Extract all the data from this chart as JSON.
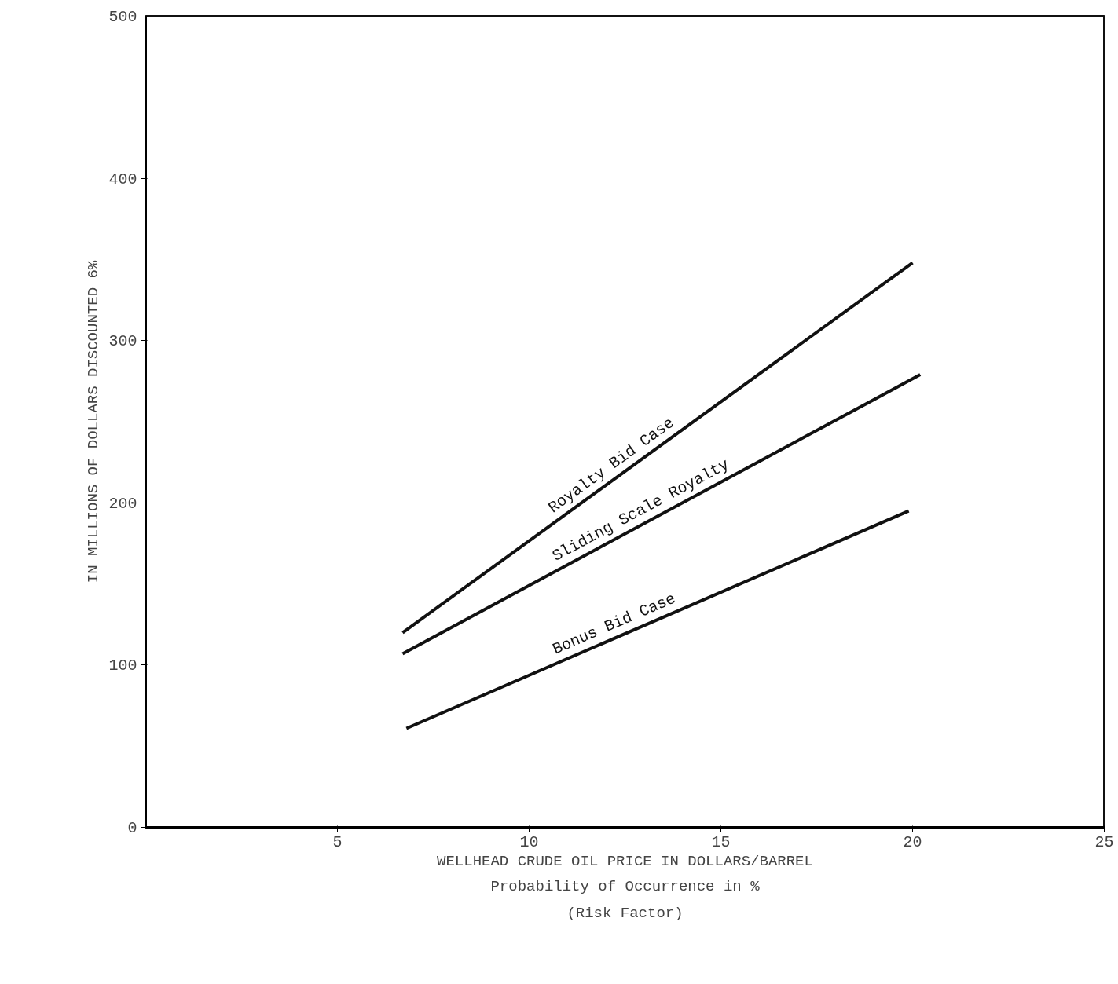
{
  "chart_data": {
    "type": "line",
    "xlabel": "WELLHEAD CRUDE OIL PRICE IN DOLLARS/BARREL",
    "ylabel": "IN MILLIONS OF DOLLARS DISCOUNTED 6%",
    "annotations": [
      "Probability of Occurrence in %",
      "(Risk Factor)"
    ],
    "xlim": [
      0,
      25
    ],
    "xticks": [
      5,
      10,
      15,
      20,
      25
    ],
    "ylim": [
      0,
      500
    ],
    "yticks": [
      0,
      100,
      200,
      300,
      400,
      500
    ],
    "grid": false,
    "legend": false,
    "marker": "none",
    "line_style": "solid",
    "series": [
      {
        "name": "Royalty Bid Case",
        "color": "#111111",
        "x": [
          6.7,
          20.0
        ],
        "values": [
          120,
          348
        ]
      },
      {
        "name": "Sliding Scale Royalty",
        "color": "#111111",
        "x": [
          6.7,
          20.2
        ],
        "values": [
          107,
          279
        ]
      },
      {
        "name": "Bonus Bid Case",
        "color": "#111111",
        "x": [
          6.8,
          19.9
        ],
        "values": [
          61,
          195
        ]
      }
    ]
  }
}
